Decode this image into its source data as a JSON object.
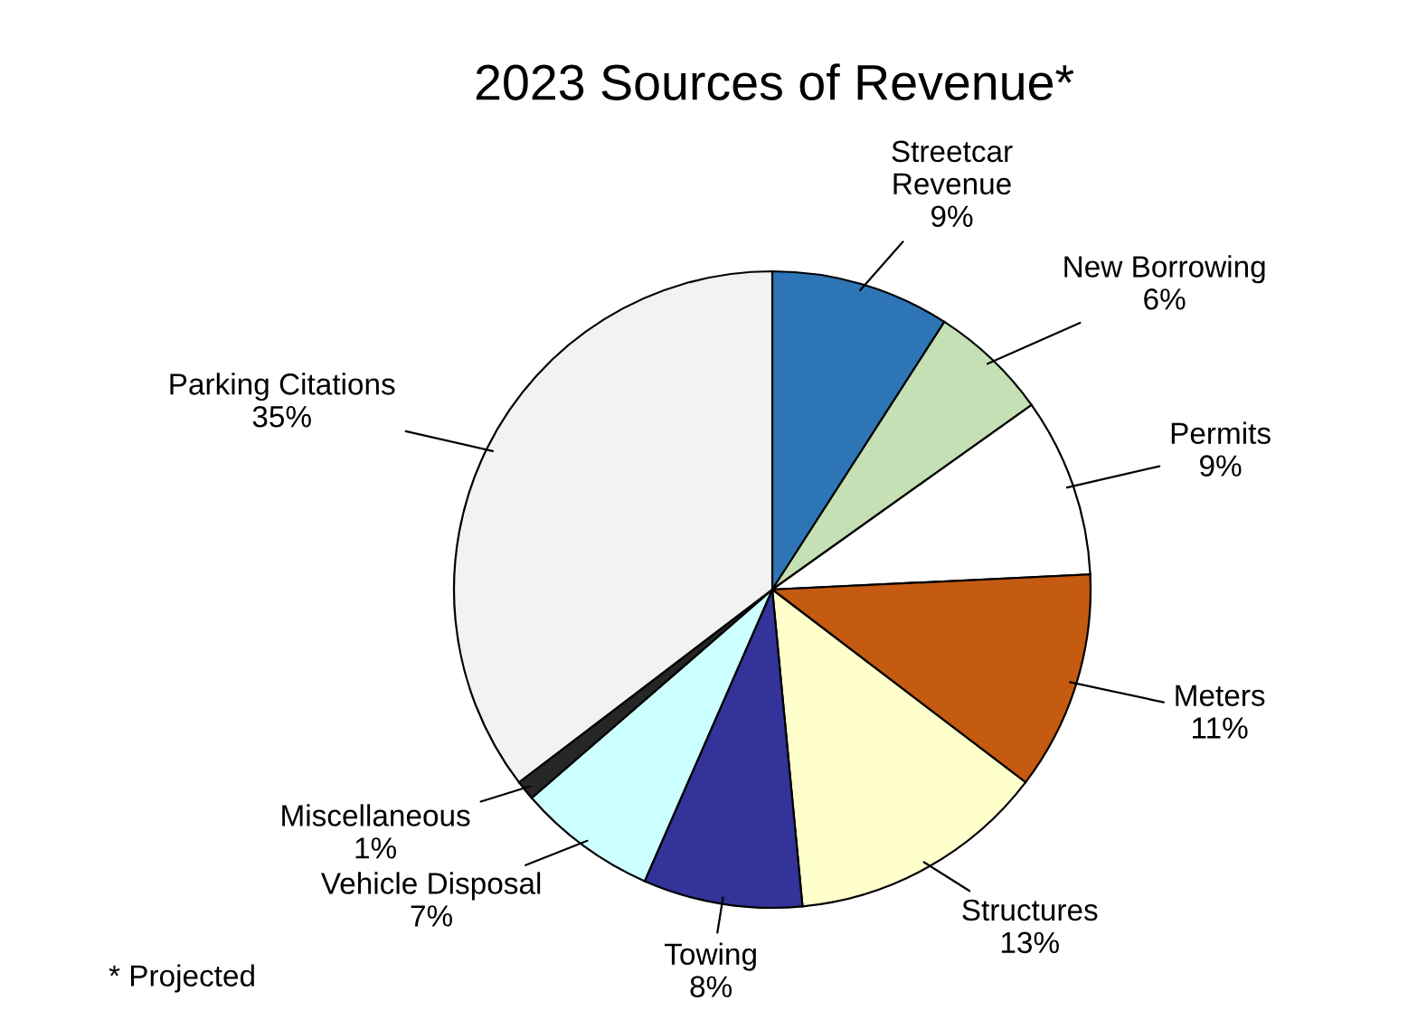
{
  "chart_data": {
    "type": "pie",
    "title": "2023 Sources of Revenue*",
    "categories": [
      "Streetcar\nRevenue",
      "New Borrowing",
      "Permits",
      "Meters",
      "Structures",
      "Towing",
      "Vehicle Disposal",
      "Miscellaneous",
      "Parking Citations"
    ],
    "values": [
      9,
      6,
      9,
      11,
      13,
      8,
      7,
      1,
      35
    ],
    "colors": [
      "#2e75b6",
      "#c5e0b4",
      "#ffffff",
      "#c55a11",
      "#ffffcc",
      "#333399",
      "#ccffff",
      "#262626",
      "#f2f2f2"
    ],
    "value_labels": [
      "9%",
      "6%",
      "9%",
      "11%",
      "13%",
      "8%",
      "7%",
      "1%",
      "35%"
    ],
    "legend": false,
    "annotations": [
      "* Projected"
    ]
  }
}
